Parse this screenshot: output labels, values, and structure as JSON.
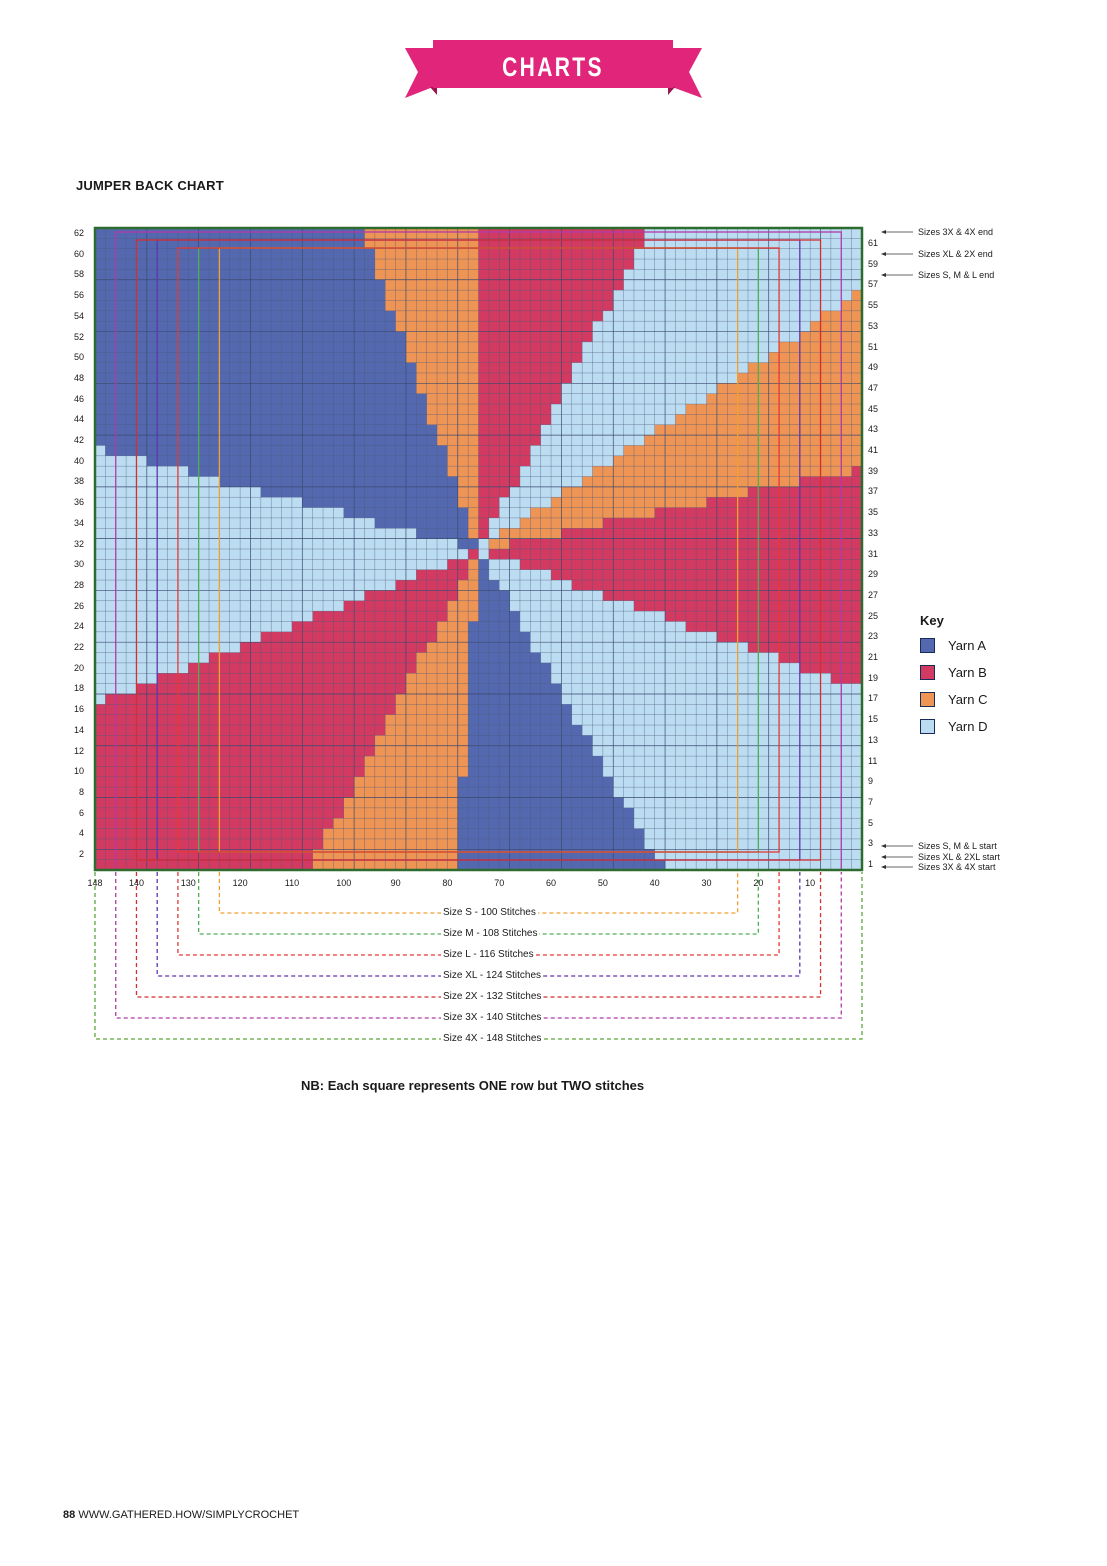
{
  "header": {
    "banner_text": "CHARTS",
    "banner_color": "#e0257a"
  },
  "chart": {
    "title": "JUMPER BACK CHART",
    "left_row_labels": [
      "62",
      "60",
      "58",
      "56",
      "54",
      "52",
      "50",
      "48",
      "46",
      "44",
      "42",
      "40",
      "38",
      "36",
      "34",
      "32",
      "30",
      "28",
      "26",
      "24",
      "22",
      "20",
      "18",
      "16",
      "14",
      "12",
      "10",
      "8",
      "6",
      "4",
      "2"
    ],
    "right_row_labels": [
      "61",
      "59",
      "57",
      "55",
      "53",
      "51",
      "49",
      "47",
      "45",
      "43",
      "41",
      "39",
      "37",
      "35",
      "33",
      "31",
      "29",
      "27",
      "25",
      "23",
      "21",
      "19",
      "17",
      "15",
      "13",
      "11",
      "9",
      "7",
      "5",
      "3",
      "1"
    ],
    "stitch_labels": [
      "148",
      "140",
      "130",
      "120",
      "110",
      "100",
      "90",
      "80",
      "70",
      "60",
      "50",
      "40",
      "30",
      "20",
      "10"
    ],
    "markers": [
      {
        "row": 62,
        "text": "Sizes 3X & 4X end"
      },
      {
        "row": 60,
        "text": "Sizes XL & 2X end"
      },
      {
        "row": 58,
        "text": "Sizes S, M & L end"
      },
      {
        "row": 3,
        "text": "Sizes S, M & L start"
      },
      {
        "row": 2,
        "text": "Sizes XL & 2XL start"
      },
      {
        "row": 1,
        "text": "Sizes 3X & 4X start"
      }
    ],
    "sizes": [
      {
        "label": "Size S - 100 Stitches",
        "stitches": 100,
        "color": "#f0a030"
      },
      {
        "label": "Size M - 108 Stitches",
        "stitches": 108,
        "color": "#4caf50"
      },
      {
        "label": "Size L - 116 Stitches",
        "stitches": 116,
        "color": "#e53935"
      },
      {
        "label": "Size XL - 124 Stitches",
        "stitches": 124,
        "color": "#5e35b1"
      },
      {
        "label": "Size 2X - 132 Stitches",
        "stitches": 132,
        "color": "#d32f2f"
      },
      {
        "label": "Size 3X - 140 Stitches",
        "stitches": 140,
        "color": "#b03aa8"
      },
      {
        "label": "Size 4X - 148 Stitches",
        "stitches": 148,
        "color": "#5aa83a"
      }
    ],
    "key": {
      "title": "Key",
      "items": [
        {
          "label": "Yarn A",
          "color": "#5468b0"
        },
        {
          "label": "Yarn B",
          "color": "#d23a62"
        },
        {
          "label": "Yarn C",
          "color": "#ee9455"
        },
        {
          "label": "Yarn D",
          "color": "#bcdcf2"
        }
      ]
    },
    "note": "NB: Each square represents ONE row but TWO stitches"
  },
  "footer": {
    "page_number": "88",
    "url": "WWW.GATHERED.HOW/SIMPLYCROCHET"
  }
}
